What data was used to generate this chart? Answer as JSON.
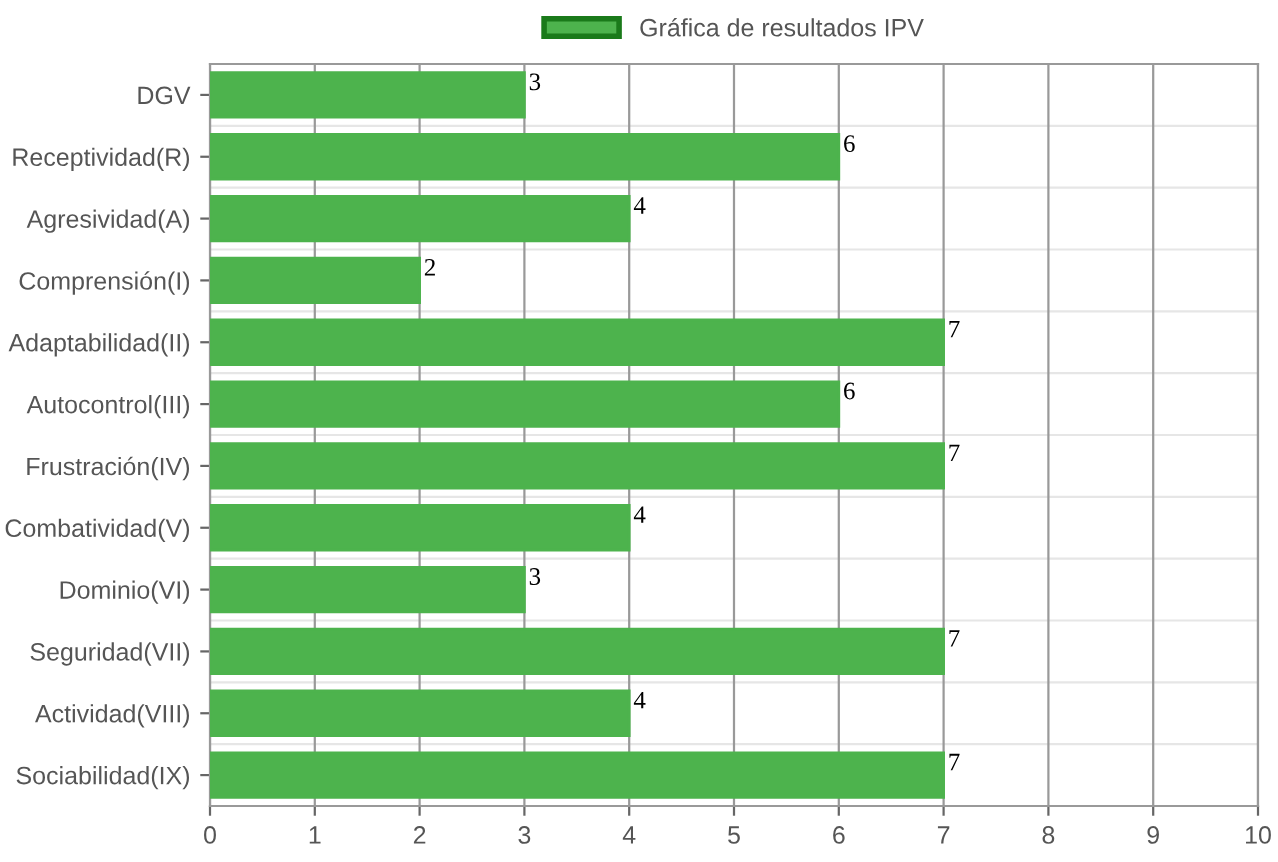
{
  "chart_data": {
    "type": "bar",
    "orientation": "horizontal",
    "categories": [
      "DGV",
      "Receptividad(R)",
      "Agresividad(A)",
      "Comprensión(I)",
      "Adaptabilidad(II)",
      "Autocontrol(III)",
      "Frustración(IV)",
      "Combatividad(V)",
      "Dominio(VI)",
      "Seguridad(VII)",
      "Actividad(VIII)",
      "Sociabilidad(IX)"
    ],
    "series": [
      {
        "name": "Gráfica de resultados IPV",
        "color": "#4db34d",
        "values": [
          3,
          6,
          4,
          2,
          7,
          6,
          7,
          4,
          3,
          7,
          4,
          7
        ]
      }
    ],
    "xlim": [
      0,
      10
    ],
    "xticks": [
      0,
      1,
      2,
      3,
      4,
      5,
      6,
      7,
      8,
      9,
      10
    ],
    "data_labels": true,
    "grid": true,
    "legend": "top"
  }
}
